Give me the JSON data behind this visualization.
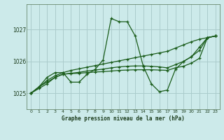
{
  "title": "Graphe pression niveau de la mer (hPa)",
  "background_color": "#cceaea",
  "grid_color": "#aacccc",
  "line_color": "#1a5c1a",
  "xlim": [
    -0.5,
    23.5
  ],
  "ylim": [
    1024.5,
    1027.8
  ],
  "yticks": [
    1025,
    1026,
    1027
  ],
  "xticks": [
    0,
    1,
    2,
    3,
    4,
    5,
    6,
    7,
    8,
    9,
    10,
    11,
    12,
    13,
    14,
    15,
    16,
    17,
    18,
    19,
    20,
    21,
    22,
    23
  ],
  "series": [
    [
      1025.0,
      1025.2,
      1025.5,
      1025.65,
      1025.65,
      1025.35,
      1025.35,
      1025.6,
      1025.75,
      1026.05,
      1027.35,
      1027.25,
      1027.25,
      1026.8,
      1025.85,
      1025.3,
      1025.05,
      1025.1,
      1025.75,
      1026.0,
      1026.15,
      1026.45,
      1026.75,
      1026.8
    ],
    [
      1025.0,
      1025.15,
      1025.3,
      1025.5,
      1025.6,
      1025.62,
      1025.63,
      1025.65,
      1025.67,
      1025.68,
      1025.7,
      1025.72,
      1025.73,
      1025.74,
      1025.74,
      1025.74,
      1025.73,
      1025.72,
      1025.8,
      1025.85,
      1025.95,
      1026.1,
      1026.75,
      1026.8
    ],
    [
      1025.0,
      1025.2,
      1025.35,
      1025.5,
      1025.6,
      1025.63,
      1025.66,
      1025.7,
      1025.73,
      1025.76,
      1025.8,
      1025.83,
      1025.85,
      1025.86,
      1025.86,
      1025.85,
      1025.83,
      1025.8,
      1025.9,
      1026.0,
      1026.15,
      1026.35,
      1026.75,
      1026.8
    ],
    [
      1025.0,
      1025.2,
      1025.4,
      1025.55,
      1025.65,
      1025.72,
      1025.77,
      1025.82,
      1025.87,
      1025.92,
      1025.97,
      1026.02,
      1026.07,
      1026.12,
      1026.17,
      1026.22,
      1026.27,
      1026.32,
      1026.42,
      1026.52,
      1026.62,
      1026.7,
      1026.75,
      1026.8
    ]
  ]
}
